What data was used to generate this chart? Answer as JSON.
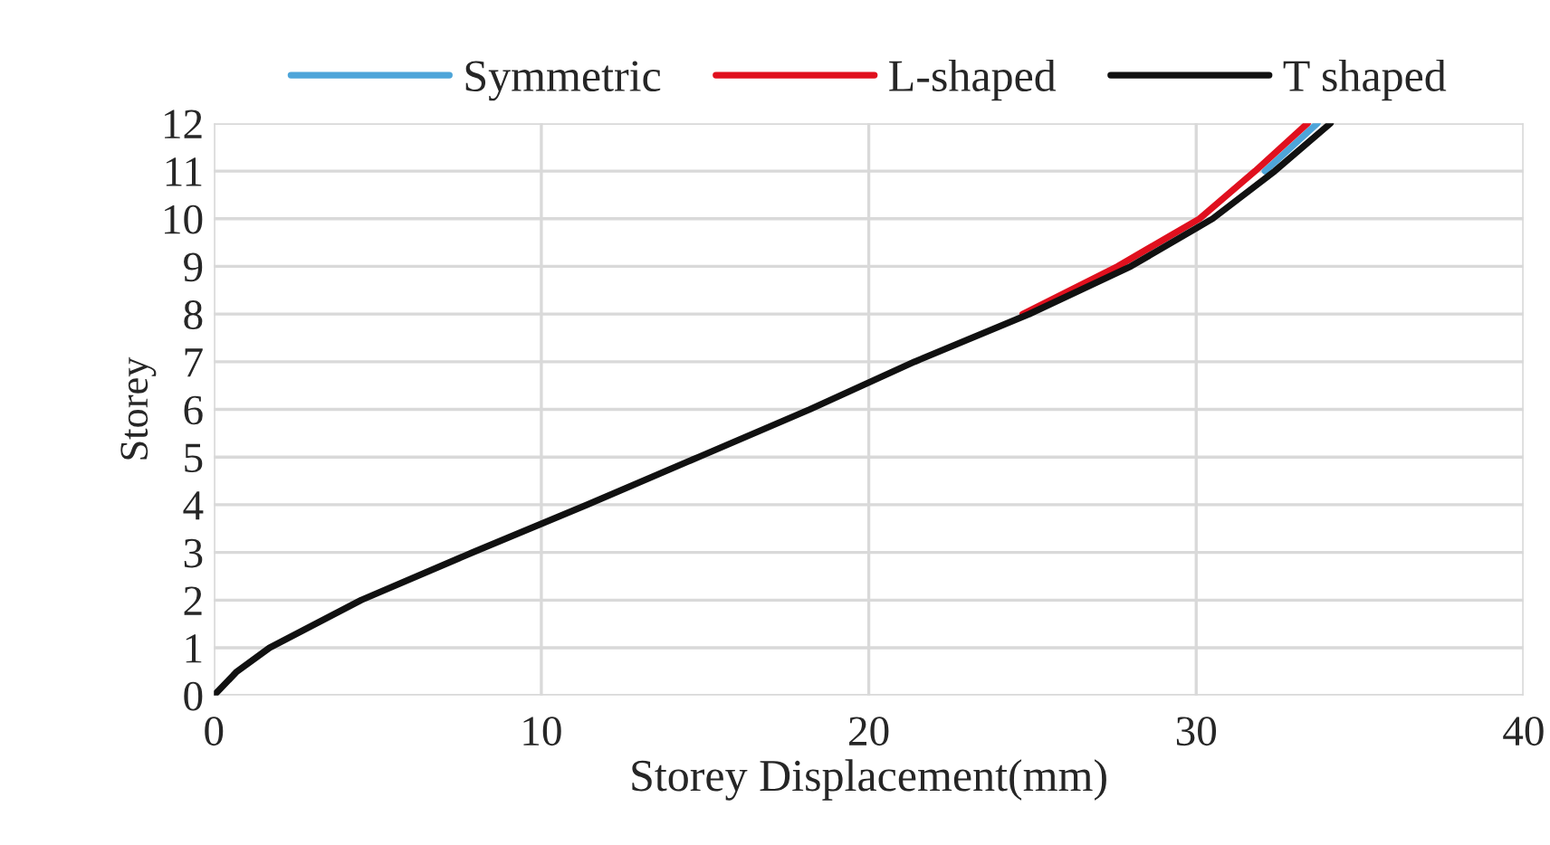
{
  "chart_data": {
    "type": "line",
    "xlabel": "Storey Displacement(mm)",
    "ylabel": "Storey",
    "xlim": [
      0,
      40
    ],
    "ylim": [
      0,
      12
    ],
    "xticks": [
      0,
      10,
      20,
      30,
      40
    ],
    "yticks": [
      0,
      1,
      2,
      3,
      4,
      5,
      6,
      7,
      8,
      9,
      10,
      11,
      12
    ],
    "grid": true,
    "legend": "top",
    "line_style": "solid",
    "marker": "none",
    "series": [
      {
        "name": "Symmetric",
        "color": "#4ea5d9",
        "x": [
          32.1,
          33.7
        ],
        "values": [
          11,
          12
        ]
      },
      {
        "name": "L-shaped",
        "color": "#e0101e",
        "x": [
          24.7,
          27.6,
          30.1,
          31.8,
          33.4
        ],
        "values": [
          8,
          9,
          10,
          11,
          12
        ]
      },
      {
        "name": "T shaped",
        "color": "#111111",
        "x": [
          0,
          0.7,
          1.7,
          4.5,
          7.9,
          11.4,
          14.8,
          18.2,
          21.4,
          24.9,
          28.0,
          30.5,
          32.4,
          34.1
        ],
        "values": [
          0,
          0.5,
          1,
          2,
          3,
          4,
          5,
          6,
          7,
          8,
          9,
          10,
          11,
          12
        ]
      }
    ]
  }
}
